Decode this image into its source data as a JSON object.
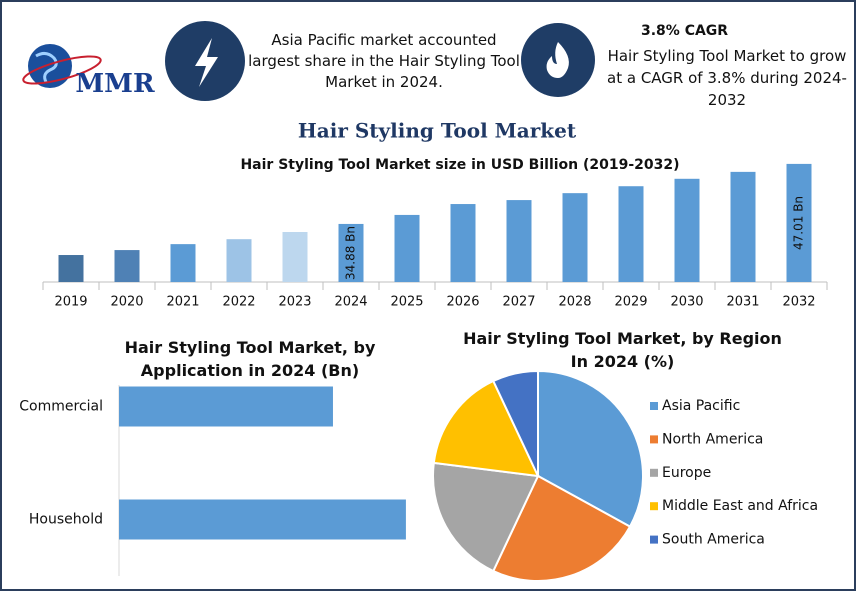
{
  "header": {
    "logo": "MMR",
    "note1": "Asia Pacific market accounted largest share in the Hair Styling Tool Market in 2024.",
    "note2_title": "3.8% CAGR",
    "note2": "Hair Styling Tool Market to grow at a CAGR of 3.8% during 2024-2032"
  },
  "title": "Hair Styling Tool Market",
  "chart_data": [
    {
      "type": "bar",
      "title": "Hair Styling Tool Market size in USD Billion (2019-2032)",
      "categories": [
        "2019",
        "2020",
        "2021",
        "2022",
        "2023",
        "2024",
        "2025",
        "2026",
        "2027",
        "2028",
        "2029",
        "2030",
        "2031",
        "2032"
      ],
      "values": [
        28.6,
        29.6,
        30.8,
        31.8,
        33.25,
        34.88,
        36.7,
        38.9,
        39.7,
        41.1,
        42.5,
        44.0,
        45.4,
        47.01
      ],
      "value_labels": [
        null,
        null,
        null,
        null,
        null,
        "34.88 Bn",
        null,
        null,
        null,
        null,
        null,
        null,
        null,
        "47.01 Bn"
      ],
      "colors": [
        "#44729f",
        "#4f81b5",
        "#5b9bd5",
        "#9dc3e6",
        "#bdd7ee",
        "#5b9bd5",
        "#5b9bd5",
        "#5b9bd5",
        "#5b9bd5",
        "#5b9bd5",
        "#5b9bd5",
        "#5b9bd5",
        "#5b9bd5",
        "#5b9bd5"
      ],
      "ylim": [
        23.15,
        48
      ]
    },
    {
      "type": "barh",
      "title": "Hair Styling Tool Market, by Application in 2024 (Bn)",
      "categories": [
        "Commercial",
        "Household"
      ],
      "values": [
        14.9,
        19.98
      ],
      "color": "#5b9bd5",
      "xlim": [
        0,
        25
      ]
    },
    {
      "type": "pie",
      "title": "Hair Styling Tool Market, by Region In 2024 (%)",
      "categories": [
        "Asia Pacific",
        "North America",
        "Europe",
        "Middle East and Africa",
        "South America"
      ],
      "values": [
        33,
        24,
        20,
        16,
        7
      ],
      "colors": [
        "#5b9bd5",
        "#ed7d31",
        "#a5a5a5",
        "#ffc000",
        "#4472c4"
      ],
      "legend": "right"
    }
  ]
}
